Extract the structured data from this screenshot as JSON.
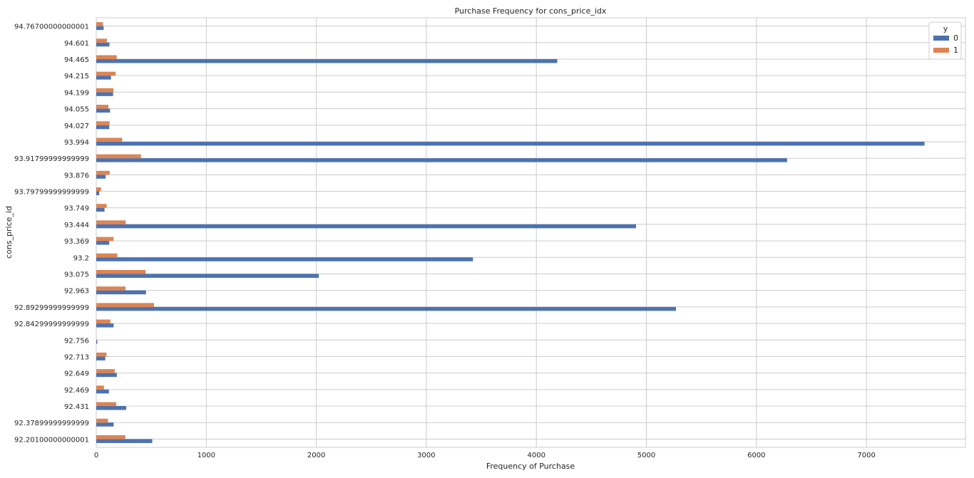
{
  "chart_data": {
    "type": "bar",
    "orientation": "horizontal",
    "title": "Purchase Frequency for cons_price_idx",
    "xlabel": "Frequency of Purchase",
    "ylabel": "cons_price_id",
    "xlim": [
      0,
      7900
    ],
    "xticks": [
      "0",
      "1000",
      "2000",
      "3000",
      "4000",
      "5000",
      "6000",
      "7000"
    ],
    "xtick_values": [
      0,
      1000,
      2000,
      3000,
      4000,
      5000,
      6000,
      7000
    ],
    "grid": true,
    "legend": {
      "title": "y",
      "position": "top-right"
    },
    "categories": [
      "94.76700000000001",
      "94.601",
      "94.465",
      "94.215",
      "94.199",
      "94.055",
      "94.027",
      "93.994",
      "93.91799999999999",
      "93.876",
      "93.79799999999999",
      "93.749",
      "93.444",
      "93.369",
      "93.2",
      "93.075",
      "92.963",
      "92.89299999999999",
      "92.84299999999999",
      "92.756",
      "92.713",
      "92.649",
      "92.469",
      "92.431",
      "92.37899999999999",
      "92.20100000000001"
    ],
    "series": [
      {
        "name": "0",
        "color": "#4c72b0",
        "values": [
          67,
          120,
          4190,
          134,
          153,
          125,
          118,
          7528,
          6279,
          85,
          27,
          75,
          4906,
          118,
          3424,
          2023,
          452,
          5269,
          158,
          9,
          82,
          187,
          115,
          272,
          158,
          509
        ]
      },
      {
        "name": "1",
        "color": "#dd8452",
        "values": [
          61,
          97,
          186,
          176,
          157,
          110,
          121,
          235,
          407,
          122,
          43,
          95,
          268,
          157,
          192,
          448,
          266,
          525,
          128,
          1,
          93,
          168,
          70,
          182,
          107,
          264
        ]
      }
    ]
  }
}
